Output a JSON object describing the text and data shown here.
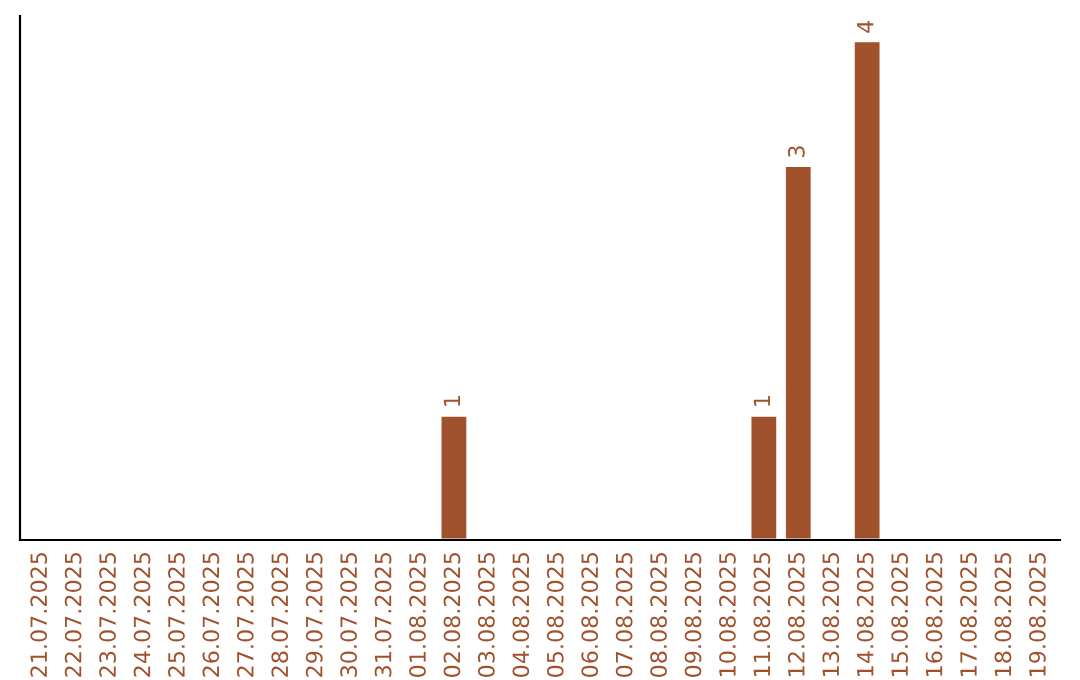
{
  "chart_data": {
    "type": "bar",
    "categories": [
      "21.07.2025",
      "22.07.2025",
      "23.07.2025",
      "24.07.2025",
      "25.07.2025",
      "26.07.2025",
      "27.07.2025",
      "28.07.2025",
      "29.07.2025",
      "30.07.2025",
      "31.07.2025",
      "01.08.2025",
      "02.08.2025",
      "03.08.2025",
      "04.08.2025",
      "05.08.2025",
      "06.08.2025",
      "07.08.2025",
      "08.08.2025",
      "09.08.2025",
      "10.08.2025",
      "11.08.2025",
      "12.08.2025",
      "13.08.2025",
      "14.08.2025",
      "15.08.2025",
      "16.08.2025",
      "17.08.2025",
      "18.08.2025",
      "19.08.2025"
    ],
    "values": [
      null,
      null,
      null,
      null,
      null,
      null,
      null,
      null,
      null,
      null,
      null,
      null,
      1,
      null,
      null,
      null,
      null,
      null,
      null,
      null,
      null,
      1,
      3,
      null,
      4,
      null,
      null,
      null,
      null,
      null
    ],
    "color": "#a0522d",
    "data_labels": true,
    "grid": false,
    "legend": false
  }
}
